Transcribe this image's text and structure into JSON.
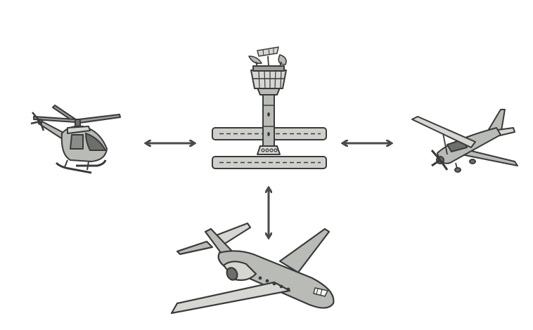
{
  "diagram": {
    "center_icon": "control-tower-with-runways-icon",
    "nodes": [
      {
        "id": "helicopter",
        "icon": "helicopter-icon"
      },
      {
        "id": "light-aircraft",
        "icon": "light-aircraft-icon"
      },
      {
        "id": "business-jet",
        "icon": "business-jet-icon"
      }
    ],
    "connections": [
      {
        "from": "control-tower",
        "to": "helicopter",
        "direction": "bidirectional"
      },
      {
        "from": "control-tower",
        "to": "light-aircraft",
        "direction": "bidirectional"
      },
      {
        "from": "control-tower",
        "to": "business-jet",
        "direction": "bidirectional"
      }
    ],
    "colors": {
      "outline": "#3a3a3a",
      "body_fill": "#b9bbb6",
      "light_fill": "#d6d7d3",
      "dark_fill": "#6d6f6b",
      "arrow": "#4a4a4a"
    }
  }
}
